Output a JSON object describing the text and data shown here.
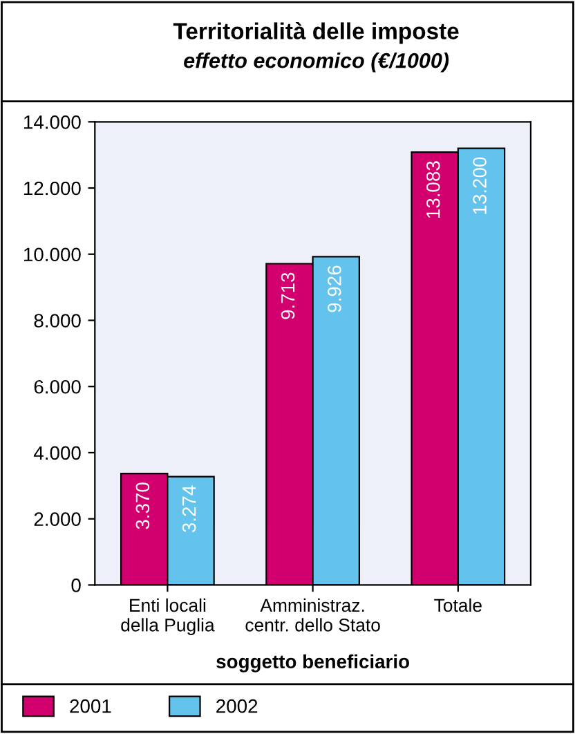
{
  "chart_data": {
    "type": "bar",
    "title": "Territorialità delle imposte",
    "subtitle": "effetto economico (€/1000)",
    "xlabel": "soggetto beneficiario",
    "categories": [
      "Enti locali\ndella Puglia",
      "Amministraz.\ncentr. dello Stato",
      "Totale"
    ],
    "series": [
      {
        "name": "2001",
        "color": "#d1006e",
        "values": [
          3370,
          9713,
          13083
        ],
        "value_labels": [
          "3.370",
          "9.713",
          "13.083"
        ]
      },
      {
        "name": "2002",
        "color": "#63c3ec",
        "values": [
          3274,
          9926,
          13200
        ],
        "value_labels": [
          "3.274",
          "9.926",
          "13.200"
        ]
      }
    ],
    "ylim": [
      0,
      14000
    ],
    "yticks": [
      {
        "value": 0,
        "label": "0"
      },
      {
        "value": 2000,
        "label": "2.000"
      },
      {
        "value": 4000,
        "label": "4.000"
      },
      {
        "value": 6000,
        "label": "6.000"
      },
      {
        "value": 8000,
        "label": "8.000"
      },
      {
        "value": 10000,
        "label": "10.000"
      },
      {
        "value": 12000,
        "label": "12.000"
      },
      {
        "value": 14000,
        "label": "14.000"
      }
    ],
    "grid": false,
    "legend": "bottom left"
  }
}
